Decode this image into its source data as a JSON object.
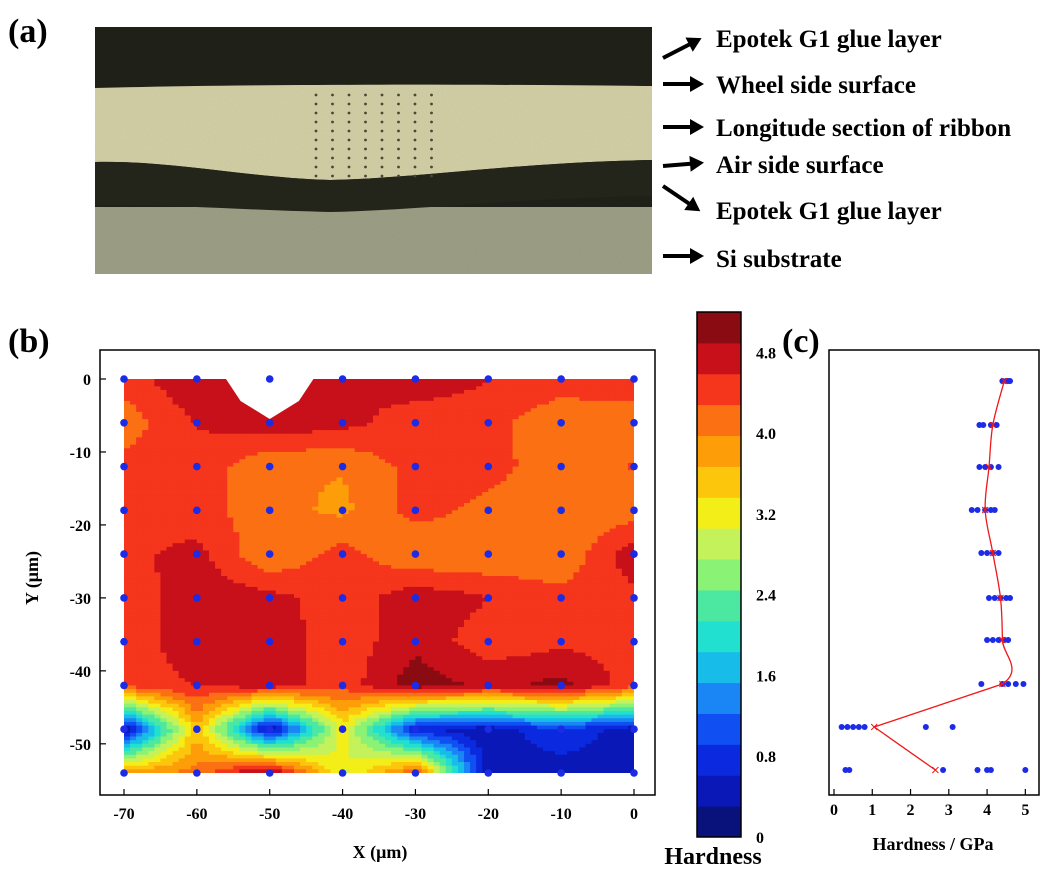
{
  "panel_labels": {
    "a": "(a)",
    "b": "(b)",
    "c": "(c)"
  },
  "micrograph": {
    "annotations": [
      "Epotek G1 glue layer",
      "Wheel side surface",
      "Longitude section of  ribbon",
      "Air side surface",
      "Epotek G1 glue layer",
      "Si substrate"
    ],
    "colors": {
      "glue": "#1f2118",
      "ribbon": "#d2cfa6",
      "substrate": "#9c9f85",
      "indent": "#4a4638"
    }
  },
  "chart_data": [
    {
      "type": "heatmap",
      "xlabel": "X (μm)",
      "ylabel": "Y (μm)",
      "xlim": [
        -70,
        0
      ],
      "ylim": [
        -54,
        0
      ],
      "x_ticks": [
        "-70",
        "-60",
        "-50",
        "-40",
        "-30",
        "-20",
        "-10",
        "0"
      ],
      "y_ticks": [
        "0",
        "-10",
        "-20",
        "-30",
        "-40",
        "-50"
      ],
      "grid_x": [
        -70,
        -60,
        -50,
        -40,
        -30,
        -20,
        -10,
        0
      ],
      "grid_y": [
        0,
        -6,
        -12,
        -18,
        -24,
        -30,
        -36,
        -42,
        -48,
        -54
      ],
      "values": [
        [
          4.4,
          4.9,
          null,
          4.6,
          4.8,
          4.6,
          4.5,
          4.5
        ],
        [
          4.1,
          4.6,
          4.8,
          4.7,
          4.4,
          4.4,
          4.0,
          4.1
        ],
        [
          4.4,
          4.5,
          4.0,
          4.0,
          4.4,
          4.4,
          4.1,
          4.3
        ],
        [
          4.4,
          4.4,
          4.1,
          3.9,
          4.4,
          4.2,
          4.0,
          4.1
        ],
        [
          4.5,
          4.7,
          4.0,
          4.4,
          4.0,
          4.0,
          4.0,
          4.8
        ],
        [
          4.4,
          4.8,
          4.7,
          4.4,
          4.8,
          4.6,
          4.4,
          4.5
        ],
        [
          4.4,
          4.8,
          4.8,
          4.4,
          4.8,
          4.4,
          4.5,
          4.5
        ],
        [
          4.4,
          4.6,
          4.8,
          4.4,
          5.1,
          4.8,
          5.0,
          4.4
        ],
        [
          0.3,
          3.6,
          0.3,
          3.2,
          0.6,
          0.4,
          0.9,
          0.4
        ],
        [
          3.8,
          4.1,
          5.1,
          3.0,
          4.3,
          0.4,
          0.4,
          0.4
        ]
      ],
      "colorbar": {
        "label": "Hardness",
        "range": [
          0,
          5.2
        ],
        "ticks": [
          "0",
          "0.8",
          "1.6",
          "2.4",
          "3.2",
          "4.0",
          "4.8"
        ],
        "colors": [
          "#08127a",
          "#0a18b8",
          "#0b2ae0",
          "#1050f2",
          "#1a86f5",
          "#17bde8",
          "#22e0cf",
          "#4ce8a2",
          "#8af274",
          "#c3f25a",
          "#f4ee18",
          "#fbc60c",
          "#fd9e08",
          "#fb7012",
          "#f5351c",
          "#c8101a",
          "#8a0b12"
        ]
      },
      "markers_color": "#1b2be6"
    },
    {
      "type": "scatter",
      "xlabel": "Hardness / GPa",
      "xlim": [
        0,
        5.2
      ],
      "x_ticks": [
        "0",
        "1",
        "2",
        "3",
        "4",
        "5"
      ],
      "rows": [
        {
          "points": [
            4.4,
            4.5,
            4.55,
            4.6
          ],
          "mean": 4.45
        },
        {
          "points": [
            3.8,
            3.9,
            4.1,
            4.25
          ],
          "mean": 4.15
        },
        {
          "points": [
            3.8,
            3.95,
            4.1,
            4.3
          ],
          "mean": 4.05
        },
        {
          "points": [
            3.6,
            3.75,
            3.95,
            4.1,
            4.2
          ],
          "mean": 3.95
        },
        {
          "points": [
            3.85,
            4.0,
            4.15,
            4.3
          ],
          "mean": 4.15
        },
        {
          "points": [
            4.05,
            4.2,
            4.35,
            4.5,
            4.6
          ],
          "mean": 4.35
        },
        {
          "points": [
            4.0,
            4.15,
            4.3,
            4.45,
            4.55
          ],
          "mean": 4.4
        },
        {
          "points": [
            3.85,
            4.4,
            4.55,
            4.75,
            4.95
          ],
          "mean": 4.4
        },
        {
          "points": [
            0.2,
            0.35,
            0.5,
            0.65,
            0.8,
            2.4,
            3.1
          ],
          "mean": 1.05
        },
        {
          "points": [
            0.3,
            0.4,
            2.85,
            3.75,
            4.0,
            4.1,
            5.0
          ],
          "mean": 2.65
        }
      ],
      "colors": {
        "points": "#1b2be6",
        "mean_line": "#f01818"
      }
    }
  ]
}
